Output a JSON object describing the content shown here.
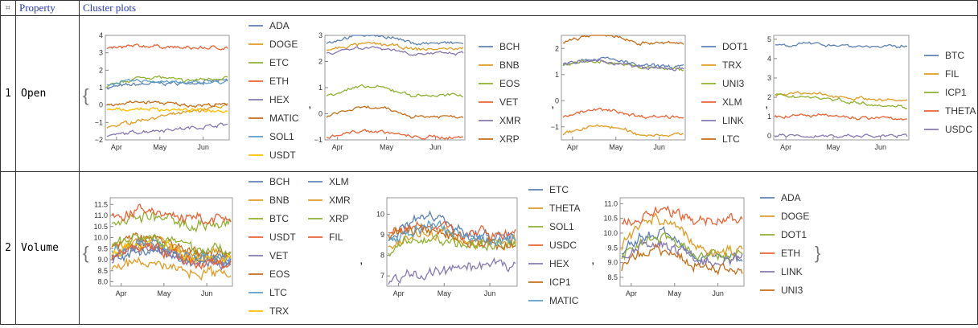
{
  "header": {
    "index_icon": "⌗",
    "col_property": "Property",
    "col_plots": "Cluster plots"
  },
  "rows": [
    {
      "index": "1",
      "property": "Open"
    },
    {
      "index": "2",
      "property": "Volume"
    }
  ],
  "separator": ",",
  "brace_open": "{",
  "brace_close": "}",
  "colors": {
    "c1": "#5e81b5",
    "c2": "#e19c24",
    "c3": "#8fb032",
    "c4": "#eb6235",
    "c5": "#8778b3",
    "c6": "#c56e1a",
    "c7": "#5d9ec7",
    "c8": "#ffbf00"
  },
  "chart_data": [
    {
      "type": "line",
      "row": 1,
      "x_ticks": [
        "Apr",
        "May",
        "Jun"
      ],
      "ylim": [
        -2,
        4
      ],
      "yticks": [
        "-2",
        "-1",
        "0",
        "1",
        "2",
        "3",
        "4"
      ],
      "series": [
        {
          "name": "ADA",
          "start": 1.0,
          "end": 1.4,
          "peak": 1.5
        },
        {
          "name": "DOGE",
          "start": -1.3,
          "end": 0.0,
          "peak": 0.1
        },
        {
          "name": "ETC",
          "start": 1.0,
          "end": 1.6,
          "peak": 2.1
        },
        {
          "name": "ETH",
          "start": 3.2,
          "end": 3.3,
          "peak": 3.5
        },
        {
          "name": "HEX",
          "start": -1.8,
          "end": -1.1,
          "peak": -1.0
        },
        {
          "name": "MATIC",
          "start": 0.0,
          "end": 0.0,
          "peak": 0.2
        },
        {
          "name": "SOL1",
          "start": 1.2,
          "end": 1.3,
          "peak": 1.5
        },
        {
          "name": "USDT",
          "start": -0.3,
          "end": -0.3,
          "peak": -0.2
        }
      ]
    },
    {
      "type": "line",
      "row": 1,
      "x_ticks": [
        "Apr",
        "May",
        "Jun"
      ],
      "ylim": [
        -1,
        3
      ],
      "yticks": [
        "-1",
        "0",
        "1",
        "2",
        "3"
      ],
      "series": [
        {
          "name": "BCH",
          "start": 2.7,
          "end": 2.7,
          "peak": 3.1
        },
        {
          "name": "BNB",
          "start": 2.4,
          "end": 2.5,
          "peak": 2.8
        },
        {
          "name": "EOS",
          "start": 0.7,
          "end": 0.7,
          "peak": 1.1
        },
        {
          "name": "VET",
          "start": -0.9,
          "end": -0.9,
          "peak": -0.6
        },
        {
          "name": "XMR",
          "start": 2.3,
          "end": 2.3,
          "peak": 2.6
        },
        {
          "name": "XRP",
          "start": -0.1,
          "end": -0.1,
          "peak": 0.3
        }
      ]
    },
    {
      "type": "line",
      "row": 1,
      "x_ticks": [
        "Apr",
        "May",
        "Jun"
      ],
      "ylim": [
        -1.5,
        2.5
      ],
      "yticks": [
        "-1",
        "0",
        "1",
        "2"
      ],
      "series": [
        {
          "name": "DOT1",
          "start": 1.4,
          "end": 1.3,
          "peak": 1.7
        },
        {
          "name": "TRX",
          "start": -1.3,
          "end": -1.3,
          "peak": -0.9
        },
        {
          "name": "UNI3",
          "start": 1.4,
          "end": 1.2,
          "peak": 1.6
        },
        {
          "name": "XLM",
          "start": -0.6,
          "end": -0.6,
          "peak": -0.3
        },
        {
          "name": "LINK",
          "start": 1.4,
          "end": 1.2,
          "peak": 1.6
        },
        {
          "name": "LTC",
          "start": 2.2,
          "end": 2.2,
          "peak": 2.6
        }
      ]
    },
    {
      "type": "line",
      "row": 1,
      "x_ticks": [
        "Apr",
        "May",
        "Jun"
      ],
      "ylim": [
        -0.2,
        5.2
      ],
      "yticks": [
        "0",
        "1",
        "2",
        "3",
        "4",
        "5"
      ],
      "series": [
        {
          "name": "BTC",
          "start": 4.7,
          "end": 4.6,
          "peak": 4.8
        },
        {
          "name": "FIL",
          "start": 2.2,
          "end": 1.8,
          "peak": 2.3
        },
        {
          "name": "ICP1",
          "start": 2.1,
          "end": 1.5,
          "peak": 2.2
        },
        {
          "name": "THETA",
          "start": 1.0,
          "end": 0.9,
          "peak": 1.1
        },
        {
          "name": "USDC",
          "start": 0.0,
          "end": 0.0,
          "peak": 0.0
        }
      ]
    },
    {
      "type": "line",
      "row": 2,
      "x_ticks": [
        "Apr",
        "May",
        "Jun"
      ],
      "ylim": [
        7.8,
        11.8
      ],
      "yticks": [
        "8.0",
        "8.5",
        "9.0",
        "9.5",
        "10.0",
        "10.5",
        "11.0",
        "11.5"
      ],
      "series": [
        {
          "name": "BCH",
          "start": 9.3,
          "end": 9.0,
          "peak": 9.8
        },
        {
          "name": "BNB",
          "start": 9.5,
          "end": 9.2,
          "peak": 10.1
        },
        {
          "name": "BTC",
          "start": 10.6,
          "end": 10.6,
          "peak": 11.0
        },
        {
          "name": "USDT",
          "start": 10.9,
          "end": 10.8,
          "peak": 11.3
        },
        {
          "name": "VET",
          "start": 9.0,
          "end": 8.8,
          "peak": 9.7
        },
        {
          "name": "EOS",
          "start": 9.6,
          "end": 9.2,
          "peak": 10.3
        },
        {
          "name": "LTC",
          "start": 9.4,
          "end": 9.0,
          "peak": 10.0
        },
        {
          "name": "TRX",
          "start": 9.2,
          "end": 9.0,
          "peak": 9.9
        },
        {
          "name": "XLM",
          "start": 9.0,
          "end": 8.9,
          "peak": 9.6
        },
        {
          "name": "XMR",
          "start": 8.6,
          "end": 8.4,
          "peak": 9.0
        },
        {
          "name": "XRP",
          "start": 9.8,
          "end": 9.4,
          "peak": 10.3
        },
        {
          "name": "FIL",
          "start": 9.1,
          "end": 8.8,
          "peak": 9.8
        }
      ]
    },
    {
      "type": "line",
      "row": 2,
      "x_ticks": [
        "Apr",
        "May",
        "Jun"
      ],
      "ylim": [
        6.5,
        10.8
      ],
      "yticks": [
        "7",
        "8",
        "9",
        "10"
      ],
      "series": [
        {
          "name": "ETC",
          "start": 8.8,
          "end": 9.0,
          "peak": 10.4
        },
        {
          "name": "THETA",
          "start": 8.5,
          "end": 8.7,
          "peak": 9.3
        },
        {
          "name": "SOL1",
          "start": 8.2,
          "end": 8.6,
          "peak": 9.2
        },
        {
          "name": "USDC",
          "start": 9.0,
          "end": 9.1,
          "peak": 9.6
        },
        {
          "name": "HEX",
          "start": 6.8,
          "end": 7.6,
          "peak": 7.7
        },
        {
          "name": "ICP1",
          "start": 8.9,
          "end": 8.5,
          "peak": 9.5
        },
        {
          "name": "MATIC",
          "start": 8.6,
          "end": 8.8,
          "peak": 9.7
        }
      ]
    },
    {
      "type": "line",
      "row": 2,
      "x_ticks": [
        "Apr",
        "May",
        "Jun"
      ],
      "ylim": [
        8.2,
        11.2
      ],
      "yticks": [
        "8.5",
        "9.0",
        "9.5",
        "10.0",
        "10.5",
        "11.0"
      ],
      "series": [
        {
          "name": "ADA",
          "start": 9.3,
          "end": 9.2,
          "peak": 10.2
        },
        {
          "name": "DOGE",
          "start": 9.6,
          "end": 9.4,
          "peak": 10.8
        },
        {
          "name": "DOT1",
          "start": 9.3,
          "end": 9.2,
          "peak": 10.0
        },
        {
          "name": "ETH",
          "start": 10.3,
          "end": 10.5,
          "peak": 10.9
        },
        {
          "name": "LINK",
          "start": 9.1,
          "end": 9.0,
          "peak": 9.8
        },
        {
          "name": "UNI3",
          "start": 8.9,
          "end": 8.8,
          "peak": 9.6
        }
      ]
    }
  ]
}
